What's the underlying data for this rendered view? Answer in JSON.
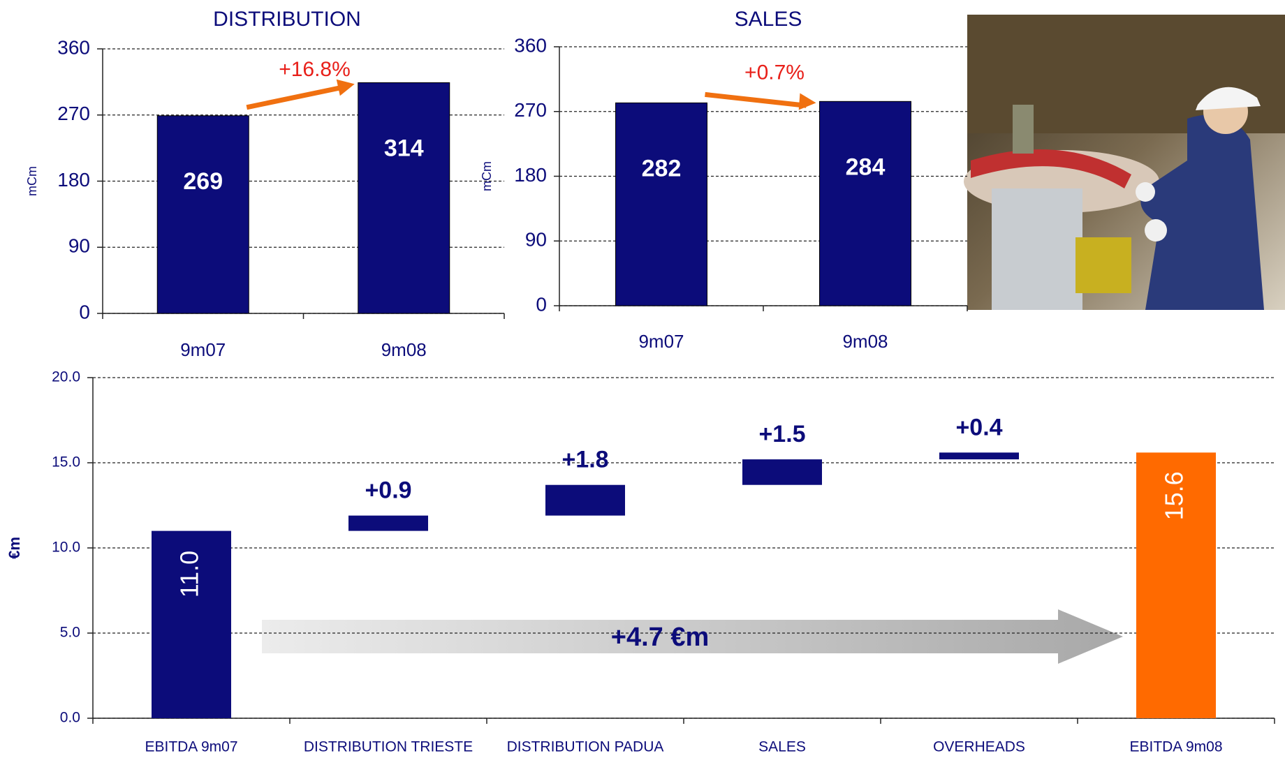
{
  "chart_data": [
    {
      "type": "bar",
      "title": "DISTRIBUTION",
      "y_label": "mCm",
      "annotation": "+16.8%",
      "categories": [
        "9m07",
        "9m08"
      ],
      "values": [
        269,
        314
      ],
      "color": "#0c0c7a",
      "ylim": [
        0,
        360
      ],
      "yticks": [
        0,
        90,
        180,
        270,
        360
      ],
      "grid": true
    },
    {
      "type": "bar",
      "title": "SALES",
      "y_label": "mCm",
      "annotation": "+0.7%",
      "categories": [
        "9m07",
        "9m08"
      ],
      "values": [
        282,
        284
      ],
      "color": "#0c0c7a",
      "ylim": [
        0,
        360
      ],
      "yticks": [
        0,
        90,
        180,
        270,
        360
      ],
      "grid": true
    },
    {
      "type": "waterfall",
      "y_label": "€m",
      "annotation": "+4.7 €m",
      "categories": [
        "EBITDA 9m07",
        "DISTRIBUTION TRIESTE",
        "DISTRIBUTION PADUA",
        "SALES",
        "OVERHEADS",
        "EBITDA 9m08"
      ],
      "values": [
        11.0,
        0.9,
        1.8,
        1.5,
        0.4,
        15.6
      ],
      "value_labels": [
        "11.0",
        "+0.9",
        "+1.8",
        "+1.5",
        "+0.4",
        "15.6"
      ],
      "measure": [
        "total",
        "relative",
        "relative",
        "relative",
        "relative",
        "total"
      ],
      "colors": [
        "#0c0c7a",
        "#0c0c7a",
        "#0c0c7a",
        "#0c0c7a",
        "#0c0c7a",
        "#ff6a00"
      ],
      "ylim": [
        0,
        20
      ],
      "yticks": [
        {
          "value": 0,
          "label": "0.0"
        },
        {
          "value": 5,
          "label": "5.0"
        },
        {
          "value": 10,
          "label": "10.0"
        },
        {
          "value": 15,
          "label": "15.0"
        },
        {
          "value": 20,
          "label": "20.0"
        }
      ],
      "grid": true
    }
  ]
}
